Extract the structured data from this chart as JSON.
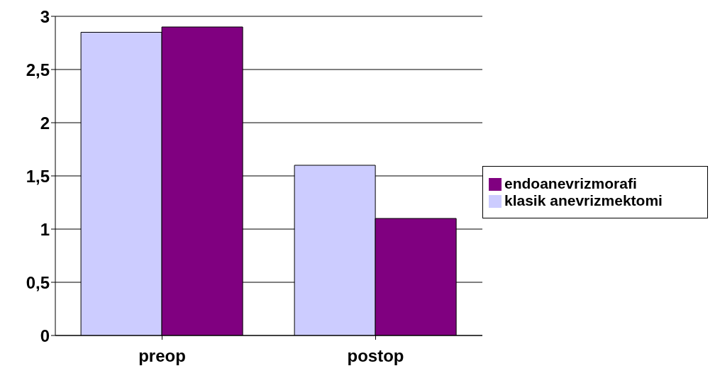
{
  "chart_data": {
    "type": "bar",
    "categories": [
      "preop",
      "postop"
    ],
    "series": [
      {
        "name": "klasik anevrizmektomi",
        "color": "#ccccff",
        "values": [
          2.85,
          1.6
        ]
      },
      {
        "name": "endoanevrizmorafi",
        "color": "#800080",
        "values": [
          2.9,
          1.1
        ]
      }
    ],
    "ylim": [
      0,
      3
    ],
    "yticks": [
      0,
      {
        "value": 0.5,
        "label": "0,5"
      },
      1,
      {
        "value": 1.5,
        "label": "1,5"
      },
      2,
      {
        "value": 2.5,
        "label": "2,5"
      },
      3
    ],
    "grid": "y",
    "legend": "right"
  }
}
